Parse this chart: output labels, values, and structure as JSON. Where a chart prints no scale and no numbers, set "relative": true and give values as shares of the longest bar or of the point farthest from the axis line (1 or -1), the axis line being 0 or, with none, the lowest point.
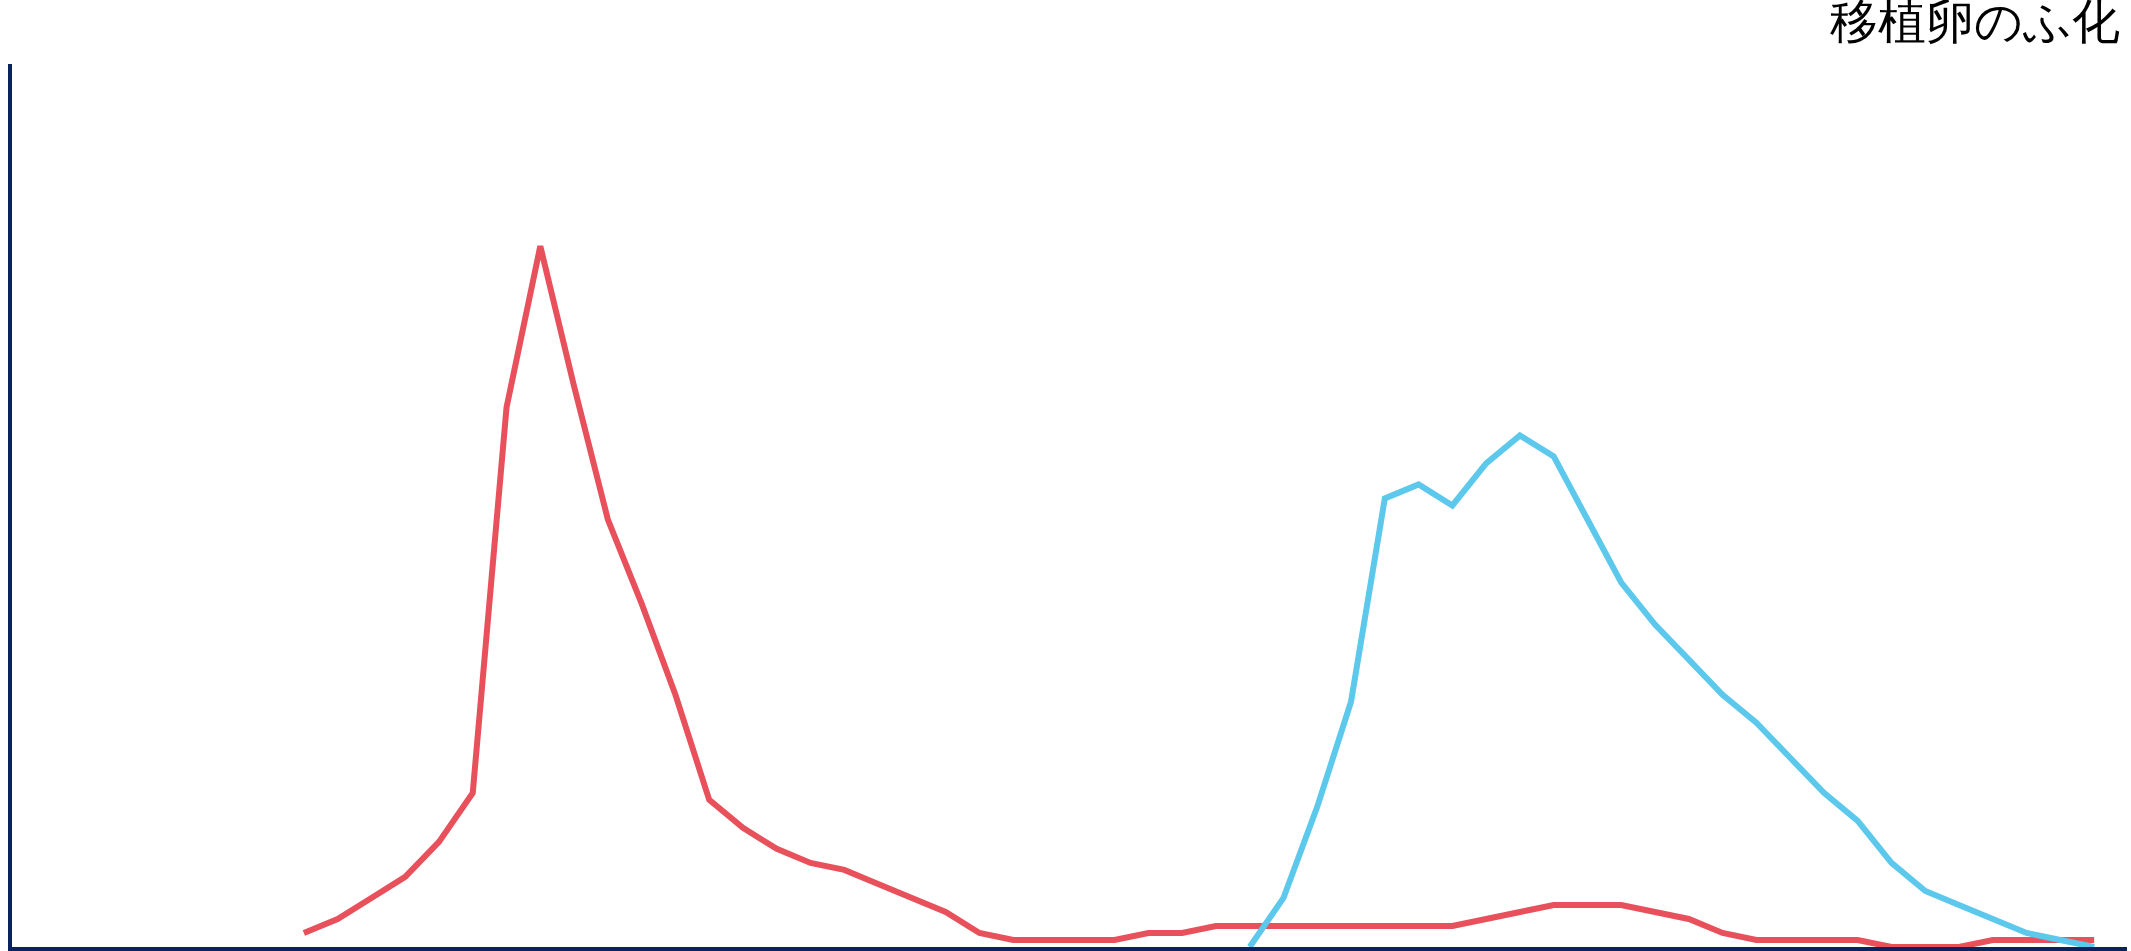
{
  "chart_data": {
    "type": "line",
    "relative": true,
    "title": "移植卵のふ化",
    "marker": "none",
    "line_style": "solid",
    "categories": [
      null,
      null,
      null,
      null,
      null,
      null,
      null,
      null,
      null,
      null,
      null,
      null,
      null,
      null,
      null,
      null,
      null,
      null,
      null,
      null,
      null,
      null,
      null,
      null,
      null,
      null,
      null,
      null,
      null,
      null,
      null,
      null,
      null,
      null,
      null,
      null,
      null,
      null,
      null,
      null,
      null,
      null,
      null,
      null,
      null,
      null,
      null,
      null,
      null,
      null,
      null,
      null,
      null,
      null
    ],
    "series": [
      {
        "color": "#e8505b",
        "values": [
          0.02,
          0.04,
          0.07,
          0.1,
          0.15,
          0.22,
          0.77,
          1,
          0.8,
          0.61,
          0.49,
          0.36,
          0.21,
          0.17,
          0.14,
          0.12,
          0.11,
          0.09,
          0.07,
          0.05,
          0.02,
          0.01,
          0.01,
          0.01,
          0.01,
          0.02,
          0.02,
          0.03,
          0.03,
          0.03,
          0.03,
          0.03,
          0.03,
          0.03,
          0.03,
          0.04,
          0.05,
          0.06,
          0.06,
          0.06,
          0.05,
          0.04,
          0.02,
          0.01,
          0.01,
          0.01,
          0.01,
          0,
          0,
          0,
          0.01,
          0.01,
          0.01,
          0.01
        ]
      },
      {
        "color": "#5bc8ec",
        "values": [
          null,
          null,
          null,
          null,
          null,
          null,
          null,
          null,
          null,
          null,
          null,
          null,
          null,
          null,
          null,
          null,
          null,
          null,
          null,
          null,
          null,
          null,
          null,
          null,
          null,
          null,
          null,
          null,
          0,
          0.07,
          0.2,
          0.35,
          0.64,
          0.66,
          0.63,
          0.69,
          0.73,
          0.7,
          0.61,
          0.52,
          0.46,
          0.41,
          0.36,
          0.32,
          0.27,
          0.22,
          0.18,
          0.12,
          0.08,
          0.06,
          0.04,
          0.02,
          0.01,
          0
        ]
      }
    ]
  }
}
